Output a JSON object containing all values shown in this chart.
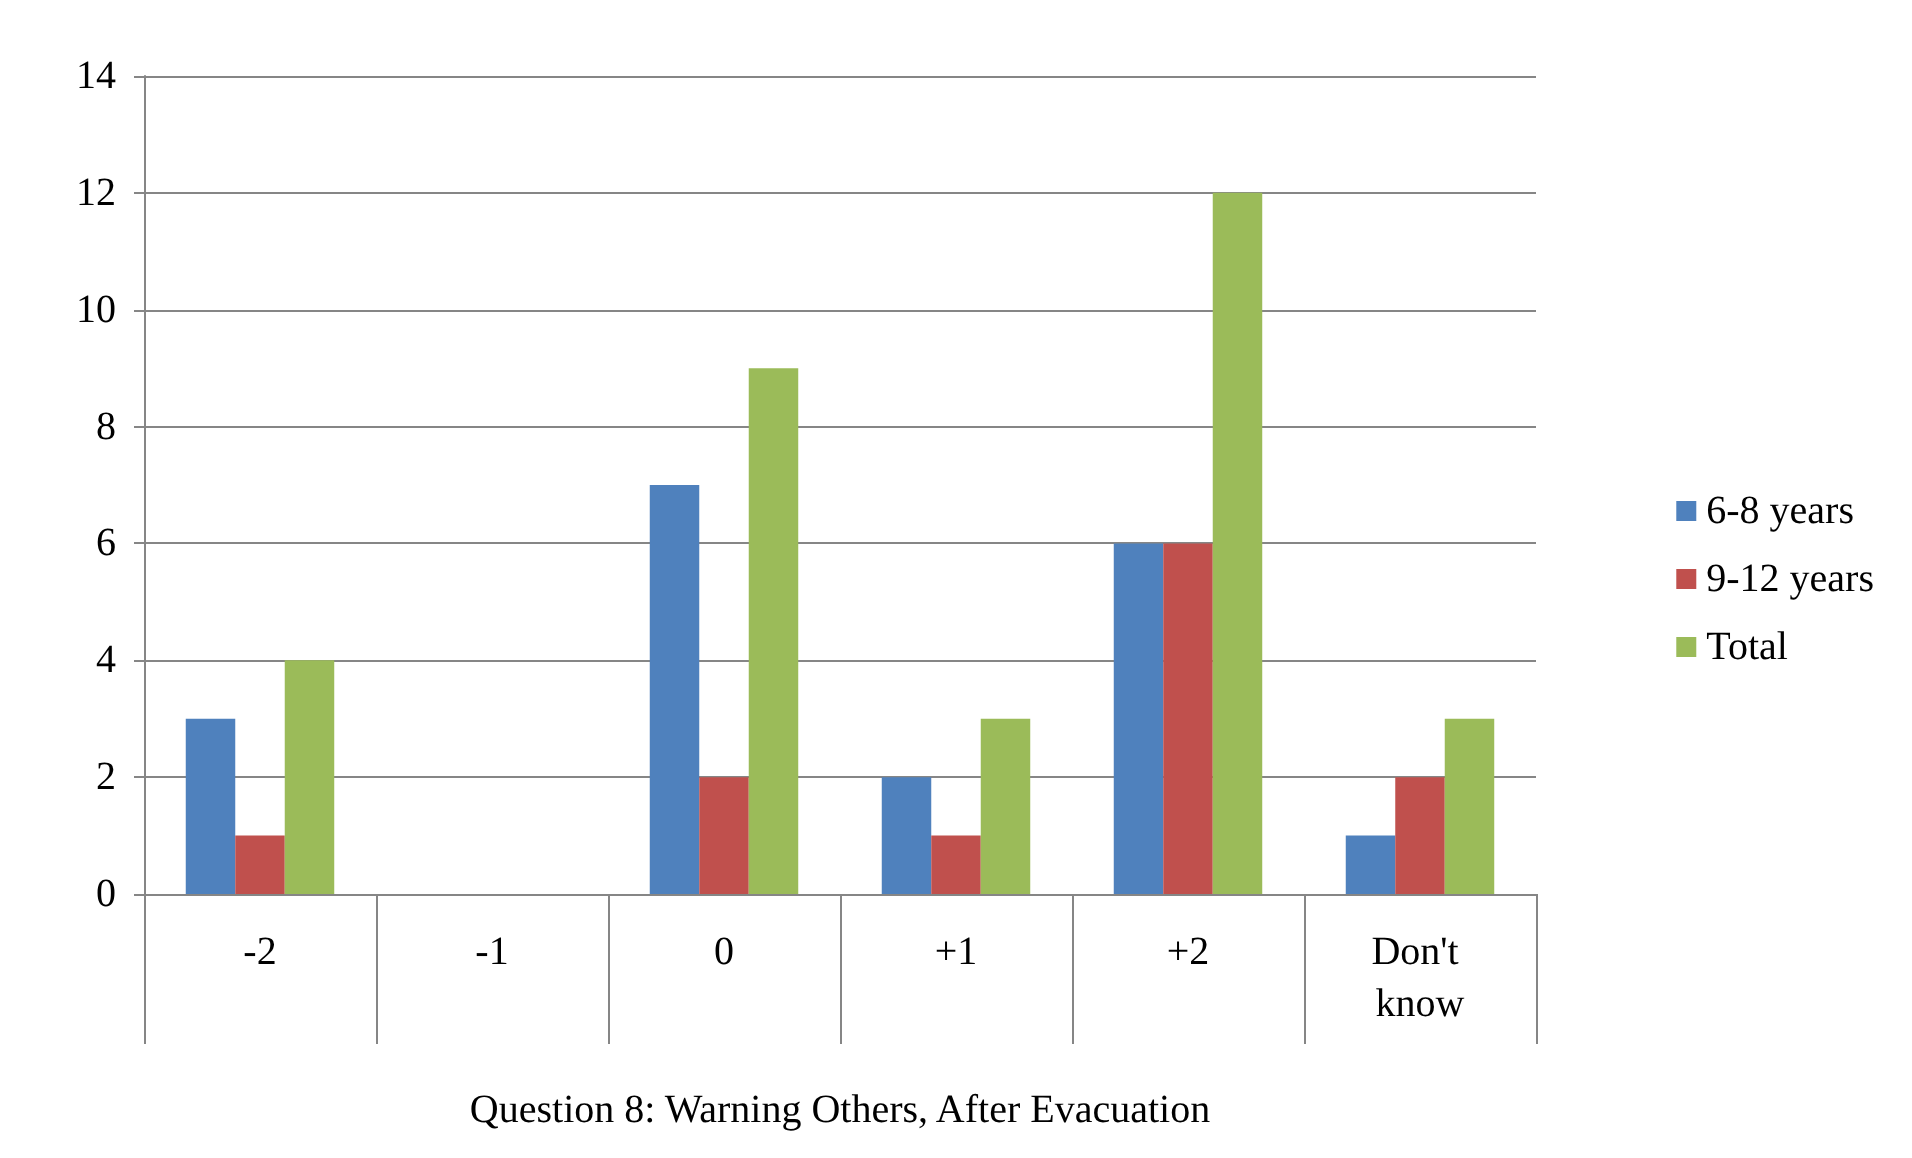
{
  "chart_data": {
    "type": "bar",
    "xlabel": "Question 8: Warning Others, After Evacuation",
    "categories": [
      "-2",
      "-1",
      "0",
      "+1",
      "+2",
      "Don't know"
    ],
    "series": [
      {
        "name": "6-8 years",
        "color": "#4f81bd",
        "values": [
          3,
          0,
          7,
          2,
          6,
          1
        ]
      },
      {
        "name": "9-12 years",
        "color": "#c0504d",
        "values": [
          1,
          0,
          2,
          1,
          6,
          2
        ]
      },
      {
        "name": "Total",
        "color": "#9bbb59",
        "values": [
          4,
          0,
          9,
          3,
          12,
          3
        ]
      }
    ],
    "ylim": [
      0,
      14
    ],
    "yticks": [
      0,
      2,
      4,
      6,
      8,
      10,
      12,
      14
    ],
    "grid": "y",
    "legend": "right"
  }
}
